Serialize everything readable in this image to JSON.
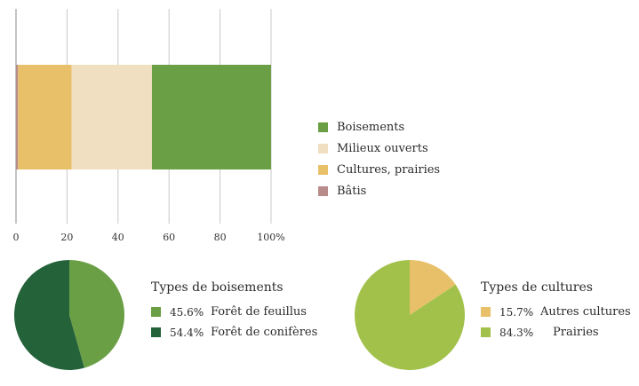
{
  "chart_data": [
    {
      "type": "bar",
      "orientation": "horizontal",
      "stacked": true,
      "xlim": [
        0,
        100
      ],
      "xticks": [
        "0",
        "20",
        "40",
        "60",
        "80",
        "100%"
      ],
      "grid": true,
      "legend_position": "right",
      "series": [
        {
          "name": "Bâtis",
          "value": 0.8,
          "color": "#b98c8c"
        },
        {
          "name": "Cultures, prairies",
          "value": 21.0,
          "color": "#e8c06a"
        },
        {
          "name": "Milieux ouverts",
          "value": 31.5,
          "color": "#f0dfc0"
        },
        {
          "name": "Boisements",
          "value": 46.7,
          "color": "#6a9f45"
        }
      ],
      "legend_order": [
        "Boisements",
        "Milieux ouverts",
        "Cultures, prairies",
        "Bâtis"
      ]
    },
    {
      "type": "pie",
      "title": "Types de boisements",
      "slices": [
        {
          "label": "Forêt de feuillus",
          "value_text": "45.6%",
          "value": 45.6,
          "color": "#6a9f45"
        },
        {
          "label": "Forêt de conifères",
          "value_text": "54.4%",
          "value": 54.4,
          "color": "#24623a"
        }
      ]
    },
    {
      "type": "pie",
      "title": "Types de cultures",
      "slices": [
        {
          "label": "Autres cultures",
          "value_text": "15.7%",
          "value": 15.7,
          "color": "#e8c06a"
        },
        {
          "label": "Prairies",
          "value_text": "84.3%",
          "value": 84.3,
          "color": "#a2c14a"
        }
      ]
    }
  ]
}
